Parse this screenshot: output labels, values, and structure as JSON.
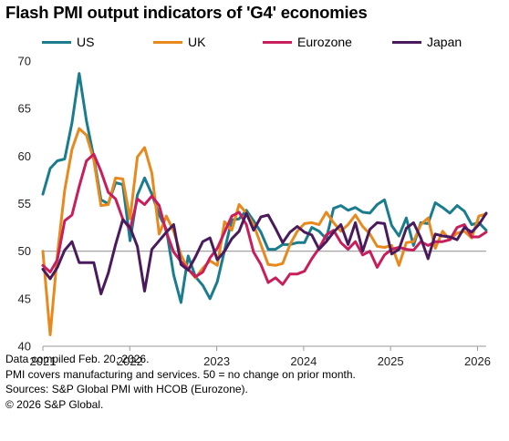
{
  "chart_data": {
    "type": "line",
    "title": "Flash PMI output indicators of 'G4' economies",
    "xlabel": "",
    "ylabel": "",
    "ylim": [
      40,
      70
    ],
    "yticks": [
      40,
      45,
      50,
      55,
      60,
      65,
      70
    ],
    "xlim": [
      2021.0,
      2026.1
    ],
    "xticks": [
      "2021",
      "2022",
      "2023",
      "2024",
      "2025",
      "2026"
    ],
    "reference_line": 50,
    "grid": false,
    "legend": "top",
    "series": [
      {
        "name": "US",
        "color": "#1b7c8e",
        "values": [
          56.0,
          58.7,
          59.5,
          59.7,
          63.5,
          68.7,
          63.7,
          59.9,
          55.4,
          55.0,
          57.2,
          57.0,
          51.1,
          55.9,
          57.7,
          56.0,
          53.8,
          52.3,
          47.5,
          44.6,
          49.5,
          47.3,
          46.4,
          45.0,
          46.8,
          50.1,
          53.3,
          53.4,
          54.3,
          53.2,
          52.0,
          50.2,
          50.2,
          50.7,
          50.7,
          50.9,
          50.9,
          52.5,
          52.1,
          51.3,
          54.5,
          54.8,
          54.3,
          54.6,
          54.1,
          54.0,
          54.9,
          55.4,
          52.7,
          51.6,
          53.5,
          50.6,
          53.0,
          52.9,
          55.1,
          54.6,
          54.0,
          54.8,
          54.2,
          52.8,
          53.0,
          52.2
        ]
      },
      {
        "name": "UK",
        "color": "#e8891e",
        "values": [
          50.0,
          41.2,
          49.6,
          56.4,
          60.7,
          62.9,
          62.2,
          59.6,
          54.8,
          54.9,
          57.7,
          57.6,
          53.4,
          59.9,
          60.9,
          58.2,
          51.8,
          53.7,
          52.1,
          49.6,
          48.1,
          47.2,
          48.2,
          49.0,
          48.5,
          53.1,
          52.2,
          54.9,
          54.0,
          52.8,
          50.7,
          48.6,
          48.5,
          48.7,
          50.7,
          52.1,
          52.9,
          53.0,
          52.8,
          54.1,
          53.0,
          52.1,
          52.8,
          53.8,
          52.6,
          51.8,
          50.5,
          50.4,
          50.6,
          48.5,
          50.9,
          51.0,
          52.8,
          53.5,
          50.3,
          52.1,
          51.2,
          51.9,
          52.1,
          51.4,
          53.7,
          53.9
        ]
      },
      {
        "name": "Eurozone",
        "color": "#c81e5c",
        "values": [
          48.5,
          47.8,
          49.1,
          53.2,
          53.8,
          56.8,
          59.5,
          60.2,
          58.4,
          56.2,
          55.5,
          53.4,
          52.3,
          55.5,
          54.9,
          55.8,
          54.8,
          52.0,
          49.9,
          48.9,
          48.1,
          47.3,
          47.8,
          49.3,
          50.3,
          52.0,
          53.7,
          54.1,
          52.8,
          49.9,
          48.6,
          46.7,
          47.2,
          46.5,
          47.6,
          47.6,
          47.9,
          49.2,
          50.3,
          51.7,
          52.2,
          50.9,
          50.2,
          51.0,
          49.6,
          50.0,
          48.3,
          49.6,
          50.2,
          50.4,
          50.2,
          50.1,
          51.0,
          50.6,
          51.0,
          51.0,
          51.2,
          52.5,
          52.8,
          51.5,
          51.5,
          52.0
        ]
      },
      {
        "name": "Japan",
        "color": "#4a1b5c",
        "values": [
          48.1,
          47.1,
          48.3,
          50.1,
          51.0,
          48.8,
          48.8,
          48.8,
          45.5,
          47.7,
          50.7,
          53.3,
          52.5,
          50.5,
          45.8,
          50.2,
          51.1,
          52.0,
          52.8,
          48.6,
          48.0,
          49.4,
          51.0,
          51.4,
          49.1,
          50.0,
          51.3,
          52.1,
          54.0,
          52.2,
          53.6,
          53.8,
          52.4,
          50.9,
          52.0,
          52.6,
          52.0,
          51.7,
          50.2,
          51.0,
          52.0,
          52.8,
          50.7,
          53.0,
          50.0,
          52.3,
          53.0,
          52.9,
          49.7,
          50.2,
          52.4,
          53.0,
          51.4,
          49.2,
          51.8,
          51.6,
          51.5,
          51.2,
          52.5,
          52.0,
          52.8,
          54.0
        ]
      }
    ]
  },
  "footer": {
    "line1": "Data compiled Feb. 20, 2026.",
    "line2": "PMI covers manufacturing and services. 50 = no change on prior month.",
    "line3": "Sources: S&P Global PMI with HCOB (Eurozone).",
    "line4": "© 2026 S&P Global."
  }
}
